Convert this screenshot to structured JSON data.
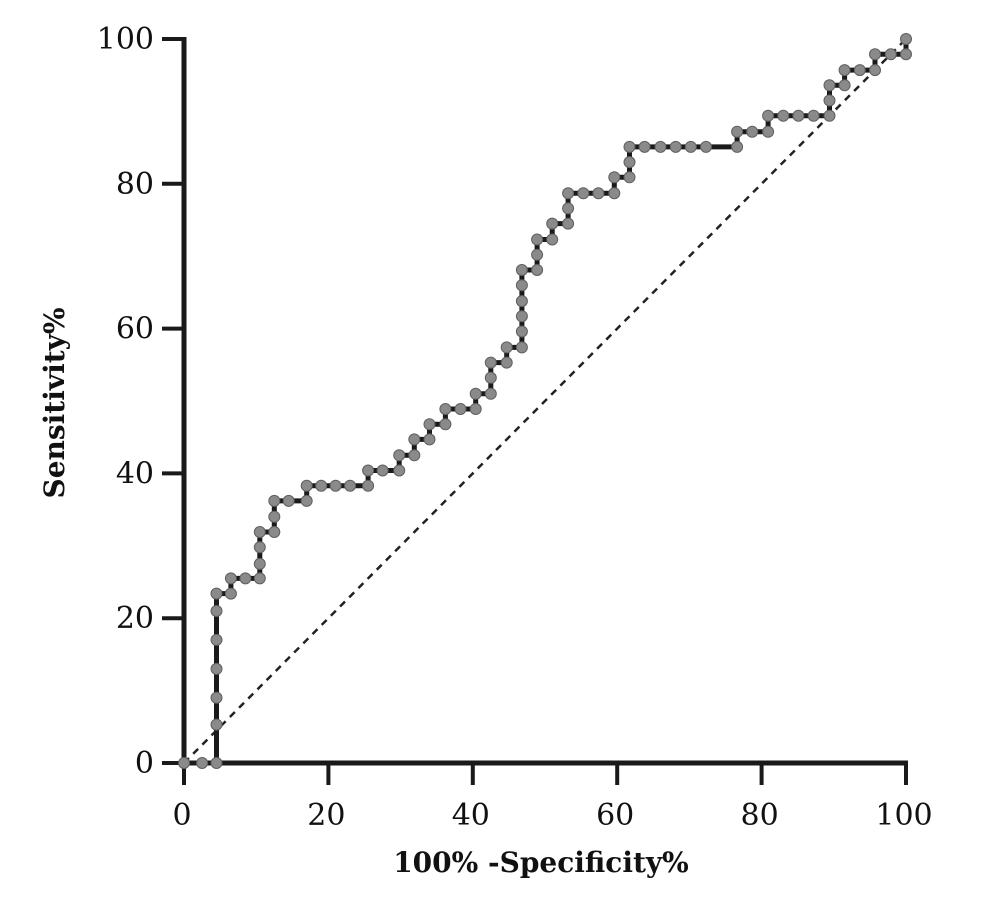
{
  "chart_data": {
    "type": "line",
    "xlabel": "100% -Specificity%",
    "ylabel": "Sensitivity%",
    "xlim": [
      0,
      100
    ],
    "ylim": [
      0,
      100
    ],
    "xticks": [
      0,
      20,
      40,
      60,
      80,
      100
    ],
    "yticks": [
      0,
      20,
      40,
      60,
      80,
      100
    ],
    "grid": false,
    "line_color": "#1a1a1a",
    "marker_color": "#8a8a8a",
    "reference_line": {
      "style": "dashed",
      "from": [
        0,
        0
      ],
      "to": [
        100,
        100
      ]
    },
    "series": [
      {
        "points": [
          [
            0,
            0
          ],
          [
            2.5,
            0
          ],
          [
            4.5,
            0
          ],
          [
            4.5,
            5.3
          ],
          [
            4.5,
            9
          ],
          [
            4.5,
            13
          ],
          [
            4.5,
            17
          ],
          [
            4.5,
            21
          ],
          [
            4.5,
            23.4
          ],
          [
            6.5,
            23.4
          ],
          [
            6.5,
            25.5
          ],
          [
            8.5,
            25.5
          ],
          [
            10.5,
            25.5
          ],
          [
            10.5,
            27.5
          ],
          [
            10.5,
            29.8
          ],
          [
            10.5,
            31.9
          ],
          [
            12.5,
            31.9
          ],
          [
            12.5,
            34
          ],
          [
            12.5,
            36.2
          ],
          [
            14.5,
            36.2
          ],
          [
            17,
            36.2
          ],
          [
            17,
            38.3
          ],
          [
            19,
            38.3
          ],
          [
            21,
            38.3
          ],
          [
            23,
            38.3
          ],
          [
            25.5,
            38.3
          ],
          [
            25.5,
            40.4
          ],
          [
            27.5,
            40.4
          ],
          [
            29.8,
            40.4
          ],
          [
            29.8,
            42.5
          ],
          [
            31.9,
            42.5
          ],
          [
            31.9,
            44.7
          ],
          [
            34,
            44.7
          ],
          [
            34,
            46.8
          ],
          [
            36.2,
            46.8
          ],
          [
            36.2,
            48.9
          ],
          [
            38.3,
            48.9
          ],
          [
            40.4,
            48.9
          ],
          [
            40.4,
            51
          ],
          [
            42.5,
            51
          ],
          [
            42.5,
            53.2
          ],
          [
            42.5,
            55.3
          ],
          [
            44.7,
            55.3
          ],
          [
            44.7,
            57.4
          ],
          [
            46.8,
            57.4
          ],
          [
            46.8,
            59.6
          ],
          [
            46.8,
            61.7
          ],
          [
            46.8,
            63.8
          ],
          [
            46.8,
            66
          ],
          [
            46.8,
            68.1
          ],
          [
            48.9,
            68.1
          ],
          [
            48.9,
            70.2
          ],
          [
            48.9,
            72.3
          ],
          [
            51,
            72.3
          ],
          [
            51,
            74.5
          ],
          [
            53.2,
            74.5
          ],
          [
            53.2,
            76.6
          ],
          [
            53.2,
            78.7
          ],
          [
            55.3,
            78.7
          ],
          [
            57.4,
            78.7
          ],
          [
            59.6,
            78.7
          ],
          [
            59.6,
            80.9
          ],
          [
            61.7,
            80.9
          ],
          [
            61.7,
            83
          ],
          [
            61.7,
            85.1
          ],
          [
            63.8,
            85.1
          ],
          [
            66,
            85.1
          ],
          [
            68.1,
            85.1
          ],
          [
            70.2,
            85.1
          ],
          [
            72.3,
            85.1
          ],
          [
            76.6,
            85.1
          ],
          [
            76.6,
            87.2
          ],
          [
            78.7,
            87.2
          ],
          [
            80.9,
            87.2
          ],
          [
            80.9,
            89.4
          ],
          [
            83,
            89.4
          ],
          [
            85.1,
            89.4
          ],
          [
            87.2,
            89.4
          ],
          [
            89.4,
            89.4
          ],
          [
            89.4,
            91.5
          ],
          [
            89.4,
            93.6
          ],
          [
            91.5,
            93.6
          ],
          [
            91.5,
            95.7
          ],
          [
            93.6,
            95.7
          ],
          [
            95.7,
            95.7
          ],
          [
            95.7,
            97.9
          ],
          [
            97.9,
            97.9
          ],
          [
            100,
            97.9
          ],
          [
            100,
            100
          ]
        ]
      }
    ]
  }
}
